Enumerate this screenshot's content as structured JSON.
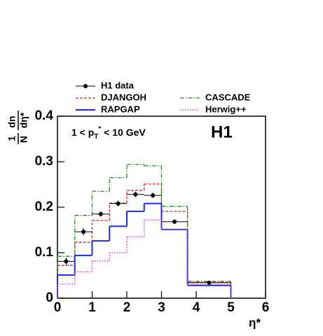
{
  "chart_data": {
    "type": "histogram",
    "ylabel": {
      "numerator": [
        "1",
        "dn"
      ],
      "denominator": [
        "N",
        "dη*"
      ]
    },
    "xlabel": "η*",
    "annotation": [
      "1 < p",
      "T",
      "*",
      " < 10 GeV"
    ],
    "experiment_label": "H1",
    "legend": "top",
    "bins": [
      0,
      0.5,
      1,
      1.5,
      2,
      2.5,
      3,
      3.75,
      5
    ],
    "data": {
      "name": "H1 data",
      "color": "#000000",
      "values": [
        0.081,
        0.146,
        0.185,
        0.208,
        0.228,
        0.226,
        0.168,
        0.034
      ],
      "errors": [
        0.008,
        0.008,
        0.006,
        0.006,
        0.006,
        0.006,
        0.005,
        0.003
      ]
    },
    "series": [
      {
        "name": "DJANGOH",
        "color": "#e8231f",
        "style": "dashed",
        "values": [
          0.072,
          0.123,
          0.171,
          0.209,
          0.237,
          0.251,
          0.191,
          0.035
        ]
      },
      {
        "name": "CASCADE",
        "color": "#2a8a2a",
        "style": "dashdot",
        "values": [
          0.092,
          0.182,
          0.235,
          0.265,
          0.294,
          0.291,
          0.202,
          0.037
        ]
      },
      {
        "name": "RAPGAP",
        "color": "#1c2ee0",
        "style": "solid",
        "values": [
          0.051,
          0.094,
          0.126,
          0.158,
          0.191,
          0.208,
          0.151,
          0.028
        ]
      },
      {
        "name": "Herwig++",
        "color": "#e040e0",
        "style": "dotted",
        "values": [
          0.031,
          0.058,
          0.082,
          0.1,
          0.135,
          0.172,
          0.151,
          0.03
        ]
      }
    ],
    "xlim": [
      0,
      6
    ],
    "xticks": [
      0,
      1,
      2,
      3,
      4,
      5,
      6
    ],
    "ylim": [
      0,
      0.4
    ],
    "yticks": [
      0,
      0.1,
      0.2,
      0.3,
      0.4
    ]
  }
}
